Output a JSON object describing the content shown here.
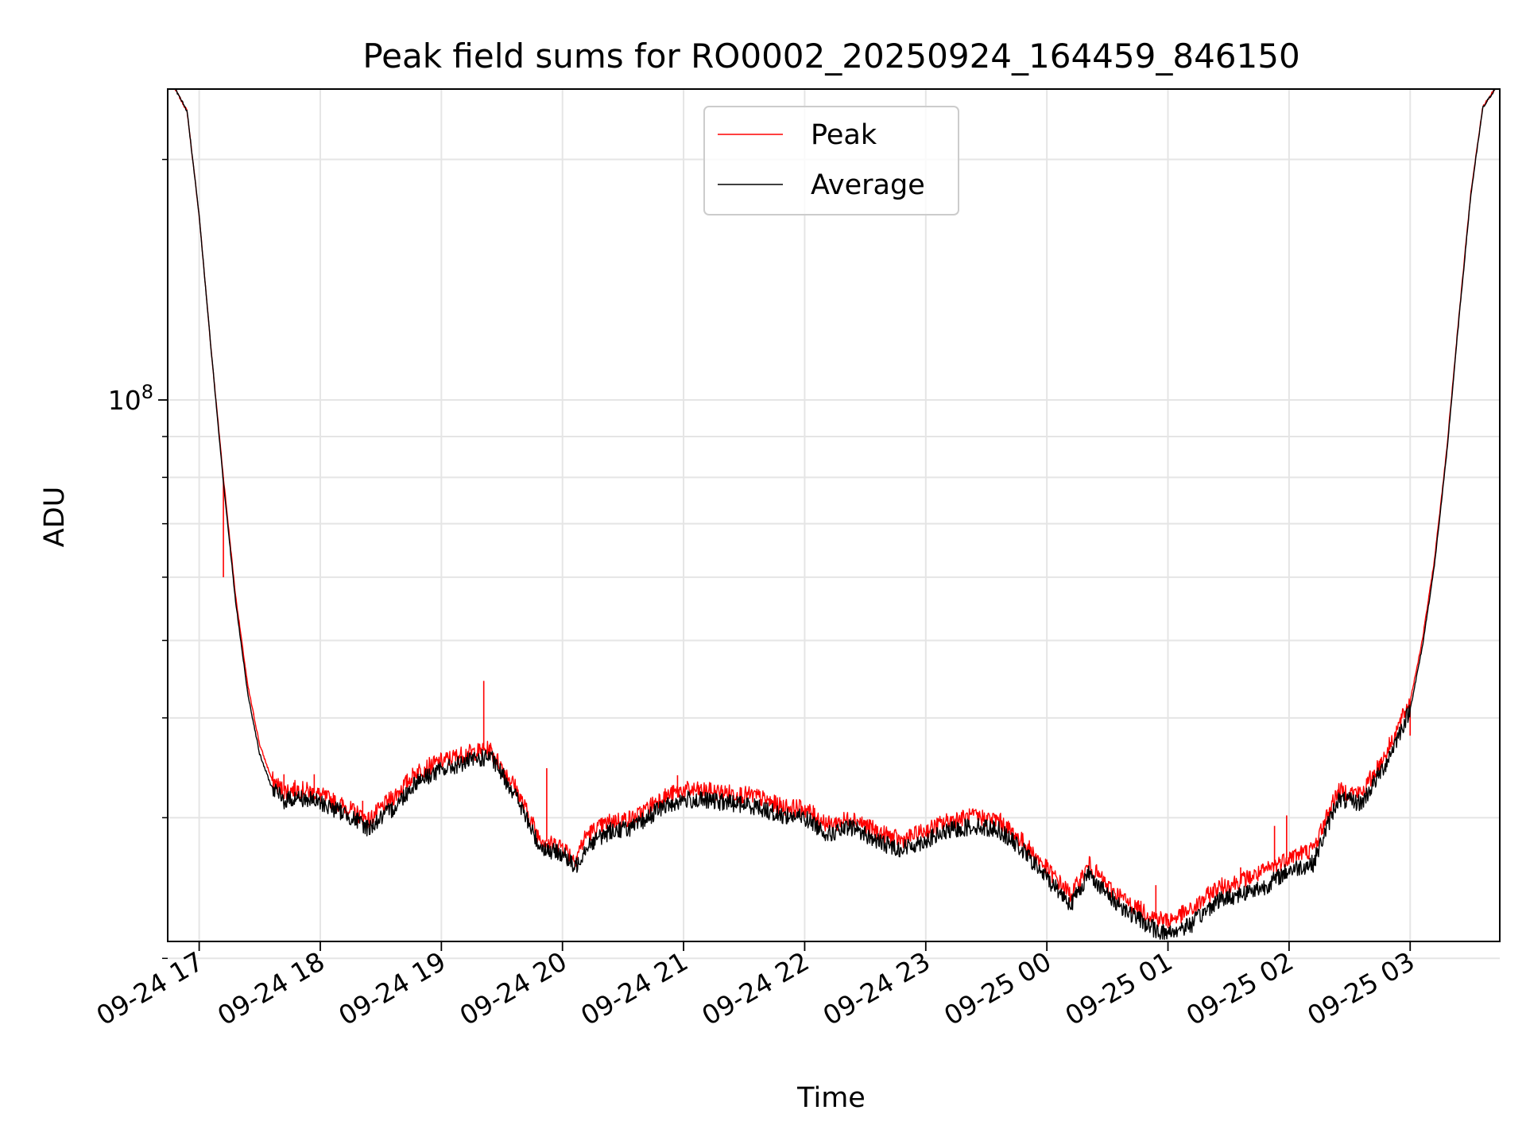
{
  "chart_data": {
    "type": "line",
    "title": "Peak field sums for RO0002_20250924_164459_846150",
    "xlabel": "Time",
    "ylabel": "ADU",
    "yscale": "log",
    "grid": true,
    "legend": {
      "placement": "top-center"
    },
    "xlim_hours": [
      -0.26,
      10.74
    ],
    "ylim": [
      21000000,
      245000000
    ],
    "x_ticks": [
      {
        "hour": 0,
        "label": "09-24 17"
      },
      {
        "hour": 1,
        "label": "09-24 18"
      },
      {
        "hour": 2,
        "label": "09-24 19"
      },
      {
        "hour": 3,
        "label": "09-24 20"
      },
      {
        "hour": 4,
        "label": "09-24 21"
      },
      {
        "hour": 5,
        "label": "09-24 22"
      },
      {
        "hour": 6,
        "label": "09-24 23"
      },
      {
        "hour": 7,
        "label": "09-25 00"
      },
      {
        "hour": 8,
        "label": "09-25 01"
      },
      {
        "hour": 9,
        "label": "09-25 02"
      },
      {
        "hour": 10,
        "label": "09-25 03"
      }
    ],
    "y_major_ticks": [
      {
        "value": 100000000,
        "base": "10",
        "exp": "8"
      }
    ],
    "y_minor_ticks": [
      20000000,
      30000000,
      40000000,
      50000000,
      60000000,
      70000000,
      80000000,
      90000000,
      200000000
    ],
    "series": [
      {
        "name": "Average",
        "color": "#000000",
        "x_hours": [
          -0.2,
          -0.1,
          0.0,
          0.1,
          0.2,
          0.3,
          0.4,
          0.5,
          0.6,
          0.7,
          0.8,
          0.9,
          1.0,
          1.2,
          1.4,
          1.6,
          1.8,
          2.0,
          2.2,
          2.4,
          2.6,
          2.8,
          2.9,
          3.0,
          3.1,
          3.2,
          3.4,
          3.6,
          3.8,
          4.0,
          4.2,
          4.4,
          4.6,
          4.8,
          5.0,
          5.2,
          5.4,
          5.6,
          5.8,
          6.0,
          6.2,
          6.4,
          6.6,
          6.8,
          7.0,
          7.2,
          7.35,
          7.5,
          7.7,
          7.9,
          8.0,
          8.2,
          8.4,
          8.6,
          8.8,
          9.0,
          9.2,
          9.4,
          9.6,
          9.8,
          10.0,
          10.1,
          10.2,
          10.3,
          10.4,
          10.5,
          10.6,
          10.7
        ],
        "values": [
          245000000,
          230000000,
          170000000,
          115000000,
          79000000,
          56000000,
          43000000,
          36000000,
          32700000,
          31500000,
          31800000,
          31600000,
          31300000,
          30400000,
          29100000,
          30800000,
          33400000,
          34400000,
          35200000,
          35800000,
          32300000,
          27800000,
          27200000,
          27100000,
          25900000,
          27700000,
          28900000,
          29200000,
          30800000,
          31600000,
          31500000,
          31300000,
          31000000,
          30200000,
          30000000,
          28600000,
          29200000,
          28000000,
          27400000,
          28100000,
          28900000,
          29300000,
          29000000,
          27300000,
          25200000,
          23400000,
          25600000,
          24000000,
          22700000,
          21700000,
          21500000,
          22100000,
          23600000,
          24100000,
          24600000,
          25800000,
          26300000,
          31600000,
          31300000,
          35100000,
          41000000,
          49000000,
          62000000,
          85000000,
          125000000,
          180000000,
          232000000,
          245000000
        ]
      },
      {
        "name": "Peak",
        "color": "#ff0000",
        "x_hours": [
          -0.2,
          -0.1,
          0.0,
          0.1,
          0.2,
          0.3,
          0.4,
          0.5,
          0.6,
          0.7,
          0.8,
          0.9,
          1.0,
          1.2,
          1.4,
          1.6,
          1.8,
          2.0,
          2.2,
          2.4,
          2.6,
          2.8,
          2.9,
          3.0,
          3.1,
          3.2,
          3.4,
          3.6,
          3.8,
          4.0,
          4.2,
          4.4,
          4.6,
          4.8,
          5.0,
          5.2,
          5.4,
          5.6,
          5.8,
          6.0,
          6.2,
          6.4,
          6.6,
          6.8,
          7.0,
          7.2,
          7.35,
          7.5,
          7.7,
          7.9,
          8.0,
          8.2,
          8.4,
          8.6,
          8.8,
          9.0,
          9.2,
          9.4,
          9.6,
          9.8,
          10.0,
          10.1,
          10.2,
          10.3,
          10.4,
          10.5,
          10.6,
          10.7
        ],
        "values": [
          245000000,
          230000000,
          170000000,
          115000000,
          80000000,
          57000000,
          44000000,
          37000000,
          33500000,
          32400000,
          32600000,
          32400000,
          32000000,
          31000000,
          29800000,
          31800000,
          34300000,
          35300000,
          36100000,
          36500000,
          33000000,
          28500000,
          27800000,
          27700000,
          26600000,
          28600000,
          29700000,
          30000000,
          31700000,
          32500000,
          32400000,
          32200000,
          31900000,
          31000000,
          30800000,
          29400000,
          30000000,
          28800000,
          28100000,
          28900000,
          29800000,
          30100000,
          29800000,
          28000000,
          25900000,
          24000000,
          26200000,
          24600000,
          23300000,
          22500000,
          22300000,
          23000000,
          24500000,
          25000000,
          25700000,
          26800000,
          27400000,
          32400000,
          32200000,
          36100000,
          42000000,
          50000000,
          63000000,
          86000000,
          126000000,
          181000000,
          233000000,
          245000000
        ],
        "spikes": [
          {
            "hour": 0.2,
            "value": 60000000
          },
          {
            "hour": 0.45,
            "value": 40500000
          },
          {
            "hour": 0.7,
            "value": 34000000
          },
          {
            "hour": 0.95,
            "value": 34000000
          },
          {
            "hour": 1.35,
            "value": 31500000
          },
          {
            "hour": 2.35,
            "value": 44500000
          },
          {
            "hour": 2.87,
            "value": 34600000
          },
          {
            "hour": 3.95,
            "value": 33900000
          },
          {
            "hour": 7.42,
            "value": 25300000
          },
          {
            "hour": 7.9,
            "value": 24700000
          },
          {
            "hour": 8.6,
            "value": 26000000
          },
          {
            "hour": 8.88,
            "value": 29300000
          },
          {
            "hour": 8.98,
            "value": 30200000
          },
          {
            "hour": 10.0,
            "value": 38000000
          }
        ]
      }
    ]
  }
}
